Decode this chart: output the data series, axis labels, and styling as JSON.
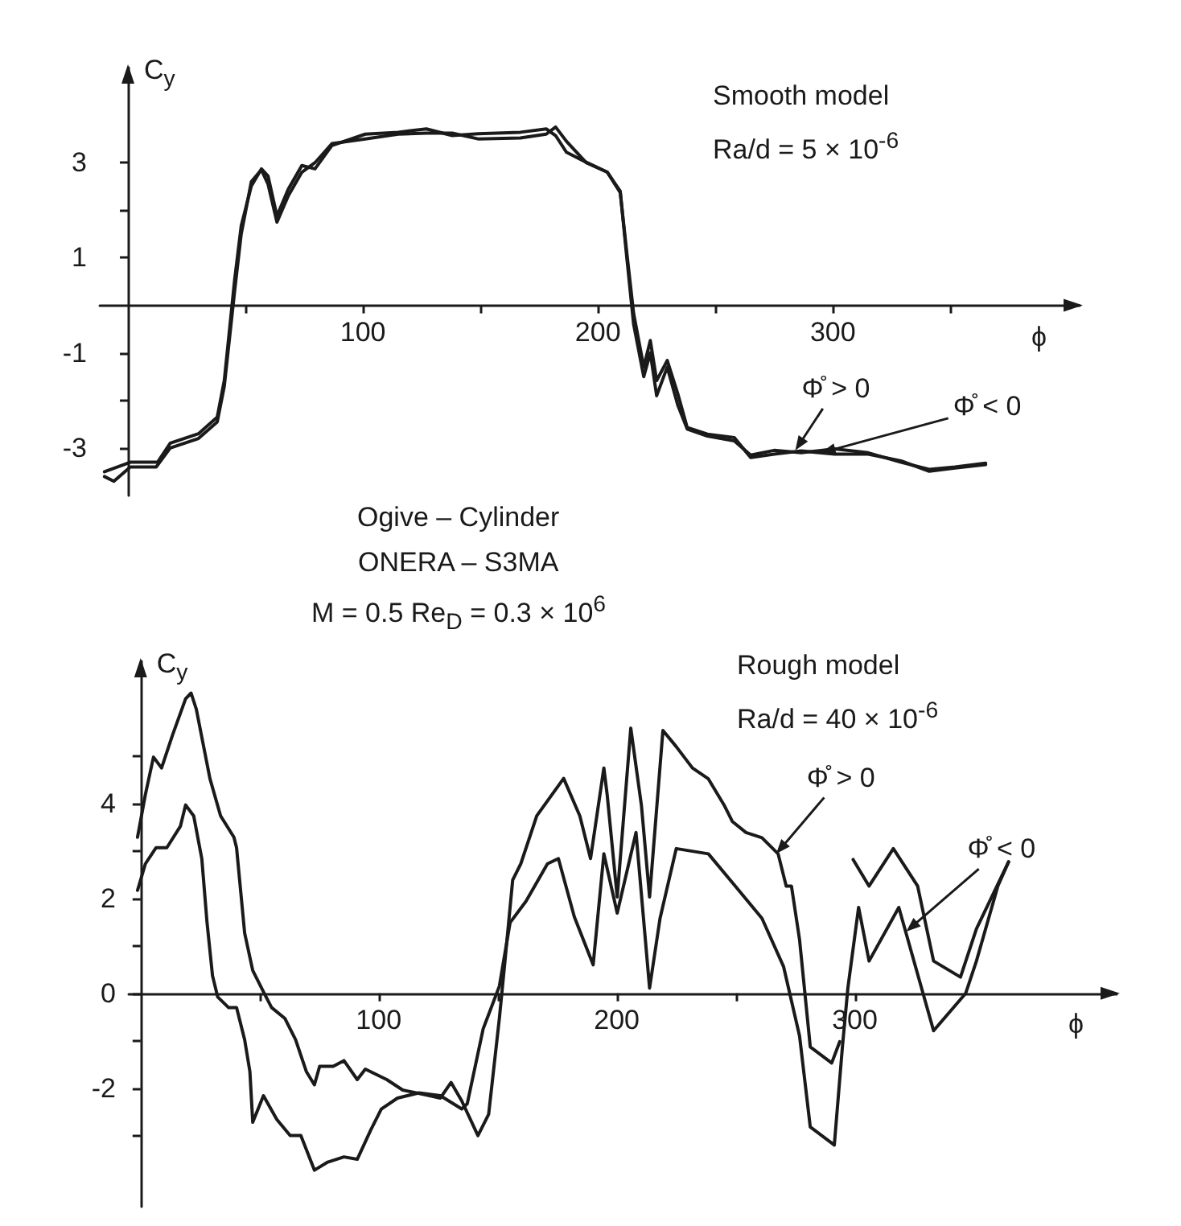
{
  "chart_data": [
    {
      "type": "line",
      "title": "Smooth model",
      "subtitle": "Ra/d = 5 × 10$^{-6}$",
      "xlabel": "ϕ",
      "ylabel": "C$_{y}$",
      "xlim": [
        -12,
        405
      ],
      "ylim": [
        -4,
        5
      ],
      "xticks": [
        {
          "value": 50,
          "label": null
        },
        100,
        {
          "value": 150,
          "label": null
        },
        200,
        {
          "value": 250,
          "label": null
        },
        300,
        {
          "value": 350,
          "label": null
        }
      ],
      "yticks": [
        -3,
        {
          "value": -2,
          "label": null
        },
        -1,
        1,
        {
          "value": 2,
          "label": null
        },
        3
      ],
      "marker": "none",
      "line_style": "solid",
      "series": [
        {
          "color": "#1a1a1a",
          "x": [
            -10,
            1,
            12.6,
            18,
            30,
            38,
            41,
            45.4,
            48.2,
            52.5,
            56.8,
            59.6,
            63.4,
            68.2,
            74,
            79.6,
            86.8,
            101,
            115,
            127,
            138,
            149,
            167,
            178,
            182,
            186.6,
            195,
            204,
            209.5,
            212.3,
            215.2,
            219.5,
            222.3,
            225,
            229.5,
            234,
            238,
            246.6,
            258,
            265,
            275,
            286.5,
            300.8,
            315,
            329,
            341,
            352,
            365
          ],
          "values": [
            -3.5,
            -3.3,
            -3.3,
            -2.9,
            -2.7,
            -2.35,
            -1.58,
            0.54,
            1.67,
            2.51,
            2.87,
            2.72,
            1.88,
            2.44,
            2.94,
            2.87,
            3.36,
            3.6,
            3.64,
            3.71,
            3.57,
            3.61,
            3.64,
            3.71,
            3.57,
            3.22,
            3.01,
            2.8,
            2.37,
            1.1,
            -0.17,
            -1.3,
            -0.74,
            -1.58,
            -1.16,
            -1.86,
            -2.57,
            -2.71,
            -2.78,
            -3.2,
            -3.13,
            -3.06,
            -3.13,
            -3.13,
            -3.27,
            -3.49,
            -3.42,
            -3.35
          ]
        },
        {
          "color": "#1a1a1a",
          "x": [
            -10,
            -6,
            1,
            12,
            18,
            30,
            38,
            41,
            45.4,
            48.2,
            52.5,
            56.8,
            59.6,
            63.4,
            68.2,
            74,
            79.6,
            86.8,
            101,
            115,
            127,
            138,
            149,
            167,
            178,
            182,
            186.6,
            195,
            204,
            209.5,
            212.3,
            215.2,
            219.5,
            222.3,
            225,
            229.5,
            234,
            238,
            246.6,
            258,
            265,
            275,
            286.5,
            300.8,
            315,
            329,
            341,
            352,
            365
          ],
          "values": [
            -3.6,
            -3.7,
            -3.4,
            -3.4,
            -3.0,
            -2.8,
            -2.45,
            -1.7,
            0.3,
            1.5,
            2.6,
            2.85,
            2.55,
            1.75,
            2.3,
            2.8,
            3.0,
            3.4,
            3.5,
            3.6,
            3.62,
            3.62,
            3.5,
            3.52,
            3.6,
            3.75,
            3.45,
            3.0,
            2.8,
            2.4,
            1.0,
            -0.4,
            -1.5,
            -1.0,
            -1.9,
            -1.3,
            -2.1,
            -2.6,
            -2.75,
            -2.85,
            -3.15,
            -3.05,
            -3.1,
            -3.02,
            -3.1,
            -3.3,
            -3.45,
            -3.4,
            -3.32
          ]
        }
      ],
      "annotations": [
        "Ogive – Cylinder",
        "ONERA – S3MA",
        "M = 0.5   Re$_{D}$ = 0.3 × 10$^{6}$",
        {
          "text": "Φ̊ > 0",
          "x": 284,
          "y": -3.05
        },
        {
          "text": "Φ̊ < 0",
          "x": 295,
          "y": -3.1
        }
      ]
    },
    {
      "type": "line",
      "title": "Rough model",
      "subtitle": "Ra/d = 40 × 10$^{-6}$",
      "xlabel": "ϕ",
      "ylabel": "C$_{y}$",
      "xlim": [
        -5,
        410
      ],
      "ylim": [
        -4.5,
        7
      ],
      "xticks": [
        {
          "value": 50,
          "label": null
        },
        100,
        {
          "value": 150,
          "label": null
        },
        200,
        {
          "value": 250,
          "label": null
        },
        300
      ],
      "yticks": [
        {
          "value": -3,
          "label": null
        },
        -2,
        {
          "value": -1,
          "label": null
        },
        0,
        {
          "value": 1,
          "label": null
        },
        2,
        {
          "value": 3,
          "label": null
        },
        4,
        {
          "value": 5,
          "label": null
        }
      ],
      "marker": "none",
      "line_style": "solid",
      "series": [
        {
          "color": "#1a1a1a",
          "x": [
            -1.3,
            2.0,
            5.4,
            8.8,
            13.3,
            18.9,
            21.2,
            23.4,
            29.1,
            33.6,
            39.2,
            40.3,
            43.7,
            47.1,
            51.6,
            55,
            60.6,
            65.1,
            69.6,
            73,
            75.2,
            80.9,
            85.4,
            91,
            94.4,
            103.4,
            110.1,
            121.4,
            125.9,
            130.4,
            134.9,
            141.7,
            146.2,
            150.7,
            152.9,
            156.3,
            159.7,
            166.4,
            177.7,
            184.5,
            189,
            194.6,
            196,
            200.2,
            205.9,
            210.4,
            213.8,
            219.4,
            225,
            231.8,
            238.5,
            245.3,
            248.6,
            254.3,
            261,
            267.8,
            271.2,
            273.4,
            276.8,
            281.3,
            290.3,
            293.7,
            296,
            299.3,
            306,
            316.2,
            326.4,
            333.1,
            344.4,
            351.1,
            364.6
          ],
          "values": [
            3.29,
            4.19,
            4.98,
            4.75,
            5.43,
            6.21,
            6.33,
            5.99,
            4.53,
            3.74,
            3.29,
            3.07,
            1.27,
            0.48,
            0.03,
            -0.3,
            -0.53,
            -0.98,
            -1.65,
            -1.93,
            -1.54,
            -1.54,
            -1.42,
            -1.82,
            -1.6,
            -1.82,
            -2.04,
            -2.16,
            -2.21,
            -1.88,
            -2.27,
            -3.0,
            -2.55,
            -0.53,
            0.6,
            2.39,
            2.73,
            3.74,
            4.53,
            3.74,
            2.84,
            4.75,
            4.18,
            2.03,
            5.59,
            3.95,
            2.03,
            5.54,
            5.2,
            4.75,
            4.52,
            3.95,
            3.62,
            3.39,
            3.28,
            2.94,
            2.26,
            2.26,
            1.13,
            -1.13,
            -1.47,
            -1.02,
            null,
            2.82,
            2.26,
            3.05,
            2.26,
            0.68,
            0.34,
            1.36,
            2.77
          ]
        },
        {
          "color": "#1a1a1a",
          "x": [
            -1.3,
            2.0,
            6.5,
            11,
            16.7,
            18.9,
            22.3,
            25.7,
            27.9,
            30.2,
            32.4,
            36.9,
            40.3,
            43.7,
            45.9,
            47.1,
            51.6,
            57.2,
            62.8,
            67.3,
            73,
            78.6,
            85.4,
            91,
            96.6,
            101.1,
            107.9,
            116.9,
            125.9,
            134.9,
            137.2,
            143.9,
            150.7,
            155.2,
            161.9,
            170.9,
            175.5,
            182.2,
            190.1,
            194.6,
            200.2,
            208.1,
            213.8,
            218.2,
            225,
            238.5,
            249.8,
            261,
            270.1,
            276.8,
            281.3,
            291.4,
            294.8,
            297.1,
            301.6,
            306,
            318.5,
            333.1,
            346.6,
            351.1,
            360.1,
            364.6
          ],
          "values": [
            2.17,
            2.73,
            3.07,
            3.07,
            3.52,
            3.97,
            3.74,
            2.84,
            1.49,
            0.37,
            -0.08,
            -0.3,
            -0.3,
            -0.98,
            -1.65,
            -2.72,
            -2.16,
            -2.66,
            -3.0,
            -3.0,
            -3.73,
            -3.56,
            -3.45,
            -3.5,
            -2.89,
            -2.44,
            -2.21,
            -2.1,
            -2.16,
            -2.44,
            -2.33,
            -0.75,
            0.15,
            1.49,
            1.94,
            2.73,
            2.84,
            1.61,
            0.6,
            2.94,
            1.69,
            3.39,
            0.11,
            1.58,
            3.05,
            2.94,
            2.26,
            1.58,
            0.56,
            -0.9,
            -2.82,
            -3.2,
            -1.13,
            0.11,
            1.81,
            0.68,
            1.81,
            -0.79,
            0,
            0.68,
            2.26,
            2.77
          ]
        }
      ],
      "annotations": [
        {
          "text": "Φ̊ > 0",
          "x": 267,
          "y": 2.94
        },
        {
          "text": "Φ̊ < 0",
          "x": 321.6,
          "y": 1.3
        }
      ]
    }
  ]
}
